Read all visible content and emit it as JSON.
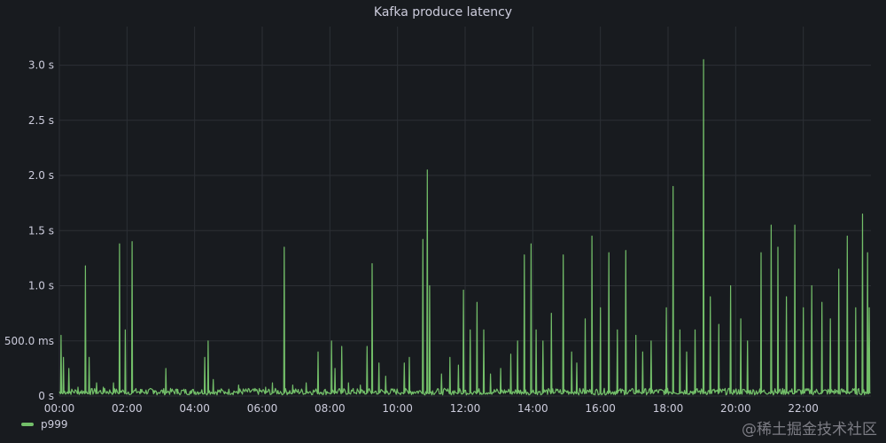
{
  "panel": {
    "title": "Kafka produce latency"
  },
  "watermark": {
    "text": "@稀土掘金技术社区"
  },
  "colors": {
    "background": "#181b1f",
    "grid": "#2c2f35",
    "series": "#73bf69",
    "text": "#ccccdc"
  },
  "chart_data": {
    "type": "line",
    "title": "Kafka produce latency",
    "xlabel": "",
    "ylabel": "",
    "x_unit": "hours",
    "xlim": [
      0,
      24
    ],
    "ylim": [
      0,
      3.35
    ],
    "grid": true,
    "legend_position": "bottom-left",
    "y_ticks": [
      {
        "value": 0,
        "label": "0 s"
      },
      {
        "value": 0.5,
        "label": "500.0 ms"
      },
      {
        "value": 1.0,
        "label": "1.0 s"
      },
      {
        "value": 1.5,
        "label": "1.5 s"
      },
      {
        "value": 2.0,
        "label": "2.0 s"
      },
      {
        "value": 2.5,
        "label": "2.5 s"
      },
      {
        "value": 3.0,
        "label": "3.0 s"
      }
    ],
    "x_ticks": [
      {
        "value": 0,
        "label": "00:00"
      },
      {
        "value": 2,
        "label": "02:00"
      },
      {
        "value": 4,
        "label": "04:00"
      },
      {
        "value": 6,
        "label": "06:00"
      },
      {
        "value": 8,
        "label": "08:00"
      },
      {
        "value": 10,
        "label": "10:00"
      },
      {
        "value": 12,
        "label": "12:00"
      },
      {
        "value": 14,
        "label": "14:00"
      },
      {
        "value": 16,
        "label": "16:00"
      },
      {
        "value": 18,
        "label": "18:00"
      },
      {
        "value": 20,
        "label": "20:00"
      },
      {
        "value": 22,
        "label": "22:00"
      }
    ],
    "series": [
      {
        "name": "p999",
        "color": "#73bf69",
        "peaks": [
          [
            0.05,
            0.55
          ],
          [
            0.12,
            0.35
          ],
          [
            0.28,
            0.25
          ],
          [
            0.55,
            0.08
          ],
          [
            0.77,
            1.18
          ],
          [
            0.88,
            0.35
          ],
          [
            1.1,
            0.12
          ],
          [
            1.3,
            0.08
          ],
          [
            1.6,
            0.12
          ],
          [
            1.78,
            1.38
          ],
          [
            1.95,
            0.6
          ],
          [
            2.15,
            1.4
          ],
          [
            2.4,
            0.06
          ],
          [
            2.8,
            0.05
          ],
          [
            3.15,
            0.25
          ],
          [
            3.5,
            0.06
          ],
          [
            3.9,
            0.05
          ],
          [
            4.3,
            0.35
          ],
          [
            4.4,
            0.5
          ],
          [
            4.55,
            0.15
          ],
          [
            4.9,
            0.04
          ],
          [
            5.3,
            0.1
          ],
          [
            6.1,
            0.08
          ],
          [
            6.3,
            0.12
          ],
          [
            6.65,
            1.35
          ],
          [
            6.9,
            0.1
          ],
          [
            7.3,
            0.12
          ],
          [
            7.65,
            0.4
          ],
          [
            8.05,
            0.5
          ],
          [
            8.15,
            0.25
          ],
          [
            8.35,
            0.45
          ],
          [
            8.55,
            0.12
          ],
          [
            8.9,
            0.1
          ],
          [
            9.1,
            0.45
          ],
          [
            9.25,
            1.2
          ],
          [
            9.45,
            0.3
          ],
          [
            9.65,
            0.18
          ],
          [
            10.2,
            0.3
          ],
          [
            10.35,
            0.35
          ],
          [
            10.75,
            1.42
          ],
          [
            10.88,
            2.05
          ],
          [
            10.95,
            1.0
          ],
          [
            11.3,
            0.2
          ],
          [
            11.55,
            0.35
          ],
          [
            11.8,
            0.28
          ],
          [
            11.95,
            0.96
          ],
          [
            12.15,
            0.6
          ],
          [
            12.35,
            0.85
          ],
          [
            12.55,
            0.6
          ],
          [
            12.75,
            0.2
          ],
          [
            13.05,
            0.25
          ],
          [
            13.35,
            0.38
          ],
          [
            13.55,
            0.5
          ],
          [
            13.75,
            1.28
          ],
          [
            13.95,
            1.38
          ],
          [
            14.1,
            0.6
          ],
          [
            14.3,
            0.5
          ],
          [
            14.55,
            0.75
          ],
          [
            14.9,
            1.28
          ],
          [
            15.15,
            0.4
          ],
          [
            15.3,
            0.3
          ],
          [
            15.55,
            0.7
          ],
          [
            15.75,
            1.45
          ],
          [
            16.0,
            0.8
          ],
          [
            16.25,
            1.3
          ],
          [
            16.5,
            0.6
          ],
          [
            16.75,
            1.32
          ],
          [
            17.05,
            0.55
          ],
          [
            17.25,
            0.4
          ],
          [
            17.5,
            0.5
          ],
          [
            17.95,
            0.8
          ],
          [
            18.15,
            1.9
          ],
          [
            18.35,
            0.6
          ],
          [
            18.55,
            0.4
          ],
          [
            18.8,
            0.6
          ],
          [
            19.05,
            3.05
          ],
          [
            19.25,
            0.9
          ],
          [
            19.5,
            0.65
          ],
          [
            19.85,
            1.0
          ],
          [
            20.15,
            0.7
          ],
          [
            20.35,
            0.5
          ],
          [
            20.75,
            1.3
          ],
          [
            21.05,
            1.55
          ],
          [
            21.25,
            1.35
          ],
          [
            21.5,
            0.9
          ],
          [
            21.75,
            1.55
          ],
          [
            22.0,
            0.8
          ],
          [
            22.25,
            1.0
          ],
          [
            22.55,
            0.85
          ],
          [
            22.8,
            0.7
          ],
          [
            23.05,
            1.15
          ],
          [
            23.3,
            1.45
          ],
          [
            23.55,
            0.8
          ],
          [
            23.75,
            1.65
          ],
          [
            23.9,
            1.3
          ],
          [
            23.95,
            0.8
          ]
        ]
      }
    ]
  }
}
